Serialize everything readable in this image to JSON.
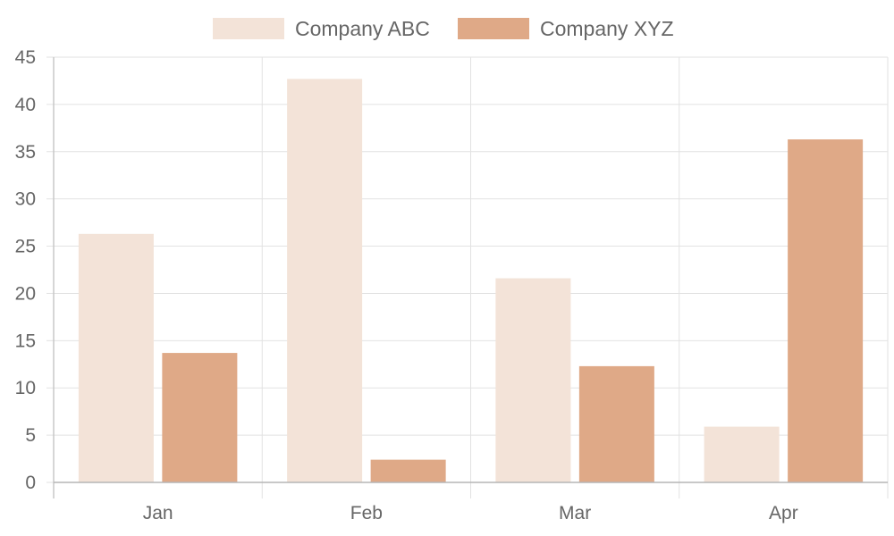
{
  "chart_data": {
    "type": "bar",
    "categories": [
      "Jan",
      "Feb",
      "Mar",
      "Apr"
    ],
    "series": [
      {
        "name": "Company ABC",
        "values": [
          26.3,
          42.7,
          21.6,
          5.9
        ],
        "color": "#f3e3d8"
      },
      {
        "name": "Company XYZ",
        "values": [
          13.7,
          2.4,
          12.3,
          36.3
        ],
        "color": "#dfa987"
      }
    ],
    "ylim": [
      0,
      45
    ],
    "yticks": [
      0,
      5,
      10,
      15,
      20,
      25,
      30,
      35,
      40,
      45
    ],
    "grid": true,
    "legend_position": "top-center"
  }
}
